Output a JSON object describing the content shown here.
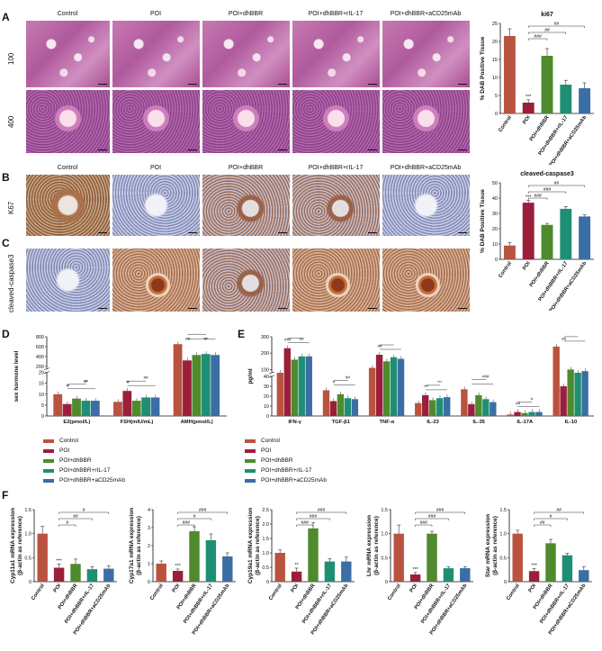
{
  "panels": {
    "A": {
      "letter": "A",
      "columns": [
        "Control",
        "POI",
        "POI+dhBBR",
        "POI+dhBBR+rIL-17",
        "POI+dhBBR+aCD25mAb"
      ],
      "rows": [
        "100",
        "400"
      ]
    },
    "B": {
      "letter": "B",
      "columns": [
        "Control",
        "POI",
        "POI+dhBBR",
        "POI+dhBBR+rIL-17",
        "POI+dhBBR+aCD25mAb"
      ],
      "row": "K67"
    },
    "C": {
      "letter": "C",
      "row": "cleaved-caspase3"
    },
    "D": {
      "letter": "D"
    },
    "E": {
      "letter": "E"
    },
    "F": {
      "letter": "F"
    }
  },
  "legend": {
    "items": [
      "Control",
      "POI",
      "POI+dhBBR",
      "POI+dhBBR+rIL-17",
      "POI+dhBBR+aCD25mAb"
    ]
  },
  "colors": {
    "Control": "#b9533f",
    "POI": "#9b1f3a",
    "POI+dhBBR": "#4f8a2d",
    "POI+dhBBR+rIL-17": "#1f8f74",
    "POI+dhBBR+aCD25mAb": "#3a6ea5"
  },
  "chart_data": [
    {
      "id": "ki67",
      "type": "bar",
      "title": "ki67",
      "ylabel": "% DAB Positive Tissue",
      "categories": [
        "Control",
        "POI",
        "POI+dhBBR",
        "POI+dhBBR+rIL-17",
        "POI+dhBBR+aCD25mAb"
      ],
      "values": [
        21.5,
        3,
        16,
        8,
        7
      ],
      "errors": [
        2,
        0.8,
        2,
        1.2,
        1.5
      ],
      "ylim": [
        0,
        25
      ],
      "yticks": [
        0,
        5,
        10,
        15,
        20,
        25
      ],
      "annotations": [
        "***",
        "###",
        "##",
        "##"
      ]
    },
    {
      "id": "caspase",
      "type": "bar",
      "title": "cleaved-caspase3",
      "ylabel": "% DAB Positive Tissue",
      "categories": [
        "Control",
        "POI",
        "POI+dhBBR",
        "POI+dhBBR+rIL-17",
        "POI+dhBBR+aCD25mAb"
      ],
      "values": [
        9,
        37,
        22.5,
        33,
        28
      ],
      "errors": [
        2,
        1.5,
        1,
        1.5,
        1
      ],
      "ylim": [
        0,
        50
      ],
      "yticks": [
        0,
        10,
        20,
        30,
        40,
        50
      ],
      "annotations": [
        "***",
        "###",
        "###",
        "##"
      ]
    },
    {
      "id": "hormone",
      "type": "bar",
      "ylabel": "sex hormone level",
      "categories": [
        "E2(pmol/L)",
        "FSH(mIU/mL)",
        "AMH(pmol/L)"
      ],
      "ytick_labels": [
        "0",
        "5",
        "10",
        "15",
        "20",
        "200",
        "400",
        "600",
        "800"
      ],
      "series": [
        {
          "name": "Control",
          "values": [
            10,
            6.5,
            650
          ]
        },
        {
          "name": "POI",
          "values": [
            5.5,
            11.5,
            320
          ]
        },
        {
          "name": "POI+dhBBR",
          "values": [
            8,
            7,
            430
          ]
        },
        {
          "name": "POI+dhBBR+rIL-17",
          "values": [
            7,
            8.5,
            450
          ]
        },
        {
          "name": "POI+dhBBR+aCD25mAb",
          "values": [
            7,
            8.5,
            430
          ]
        }
      ],
      "annotations": [
        "**",
        "##",
        "#",
        "#",
        "**",
        "##",
        "#",
        "***",
        "##",
        "#"
      ]
    },
    {
      "id": "cytokine",
      "type": "bar",
      "ylabel": "pg/ml",
      "categories": [
        "IFN-γ",
        "TGF-β1",
        "TNF-α",
        "IL-23",
        "IL-35",
        "IL-17A",
        "IL-10"
      ],
      "ytick_labels": [
        "0",
        "10",
        "20",
        "30",
        "40",
        "100",
        "200",
        "300"
      ],
      "series": [
        {
          "name": "Control",
          "values": [
            80,
            26,
            110,
            13,
            27,
            1.5,
            240
          ]
        },
        {
          "name": "POI",
          "values": [
            230,
            15,
            190,
            21,
            12,
            4,
            30
          ]
        },
        {
          "name": "POI+dhBBR",
          "values": [
            160,
            22,
            150,
            16,
            21,
            3,
            100
          ]
        },
        {
          "name": "POI+dhBBR+rIL-17",
          "values": [
            180,
            18,
            175,
            18,
            17,
            4,
            80
          ]
        },
        {
          "name": "POI+dhBBR+aCD25mAb",
          "values": [
            180,
            17,
            165,
            19,
            14,
            4,
            90
          ]
        }
      ],
      "annotations": [
        "###",
        "##",
        "#",
        "##",
        "##",
        "***",
        "***",
        "###",
        "##",
        "#",
        "##"
      ]
    },
    {
      "id": "cyp11a1",
      "type": "bar",
      "ylabel": "Cyp11a1 mRNA expression\n(β-actin as reference)",
      "categories": [
        "Control",
        "POI",
        "POI+dhBBR",
        "POI+dhBBR+rIL-17",
        "POI+dhBBR+aCD25mAb"
      ],
      "values": [
        1.0,
        0.29,
        0.37,
        0.26,
        0.27
      ],
      "errors": [
        0.15,
        0.08,
        0.1,
        0.05,
        0.06
      ],
      "ylim": [
        0,
        1.5
      ],
      "yticks": [
        0,
        0.5,
        1.0,
        1.5
      ],
      "annotations": [
        "***",
        "#",
        "##",
        "#"
      ]
    },
    {
      "id": "cyp17a1",
      "type": "bar",
      "ylabel": "Cyp17a1 mRNA expression\n(β-actin as reference)",
      "categories": [
        "Control",
        "POI",
        "POI+dhBBR",
        "POI+dhBBR+rIL-17",
        "POI+dhBBR+aCD25mAb"
      ],
      "values": [
        1.0,
        0.6,
        2.8,
        2.3,
        1.4
      ],
      "errors": [
        0.15,
        0.1,
        0.25,
        0.35,
        0.2
      ],
      "ylim": [
        0,
        4
      ],
      "yticks": [
        0,
        1,
        2,
        3,
        4
      ],
      "annotations": [
        "***",
        "###",
        "#",
        "###"
      ]
    },
    {
      "id": "cyp19a1",
      "type": "bar",
      "ylabel": "Cyp19a1 mRNA expression\n(β-actin as reference)",
      "categories": [
        "Control",
        "POI",
        "POI+dhBBR",
        "POI+dhBBR+rIL-17",
        "POI+dhBBR+aCD25mAb"
      ],
      "values": [
        1.0,
        0.35,
        1.85,
        0.7,
        0.7
      ],
      "errors": [
        0.1,
        0.12,
        0.2,
        0.1,
        0.15
      ],
      "ylim": [
        0,
        2.5
      ],
      "yticks": [
        0,
        0.5,
        1.0,
        1.5,
        2.0,
        2.5
      ],
      "annotations": [
        "**",
        "###",
        "###",
        "###"
      ]
    },
    {
      "id": "lhr",
      "type": "bar",
      "ylabel": "Lhr mRNA expression\n(β-actin as reference)",
      "categories": [
        "Control",
        "POI",
        "POI+dhBBR",
        "POI+dhBBR+rIL-17",
        "POI+dhBBR+aCD25mAb"
      ],
      "values": [
        1.0,
        0.15,
        1.0,
        0.28,
        0.28
      ],
      "errors": [
        0.18,
        0.04,
        0.05,
        0.03,
        0.03
      ],
      "ylim": [
        0,
        1.5
      ],
      "yticks": [
        0,
        0.5,
        1.0,
        1.5
      ],
      "annotations": [
        "***",
        "###",
        "###",
        "###"
      ]
    },
    {
      "id": "star",
      "type": "bar",
      "ylabel": "Star mRNA expression\n(β-actin as reference)",
      "categories": [
        "Control",
        "POI",
        "POI+dhBBR",
        "POI+dhBBR+rIL-17",
        "POI+dhBBR+aCD25mAb"
      ],
      "values": [
        1.0,
        0.22,
        0.8,
        0.55,
        0.24
      ],
      "errors": [
        0.07,
        0.05,
        0.08,
        0.04,
        0.07
      ],
      "ylim": [
        0,
        1.5
      ],
      "yticks": [
        0,
        0.5,
        1.0,
        1.5
      ],
      "annotations": [
        "***",
        "##",
        "#",
        "##"
      ]
    }
  ]
}
